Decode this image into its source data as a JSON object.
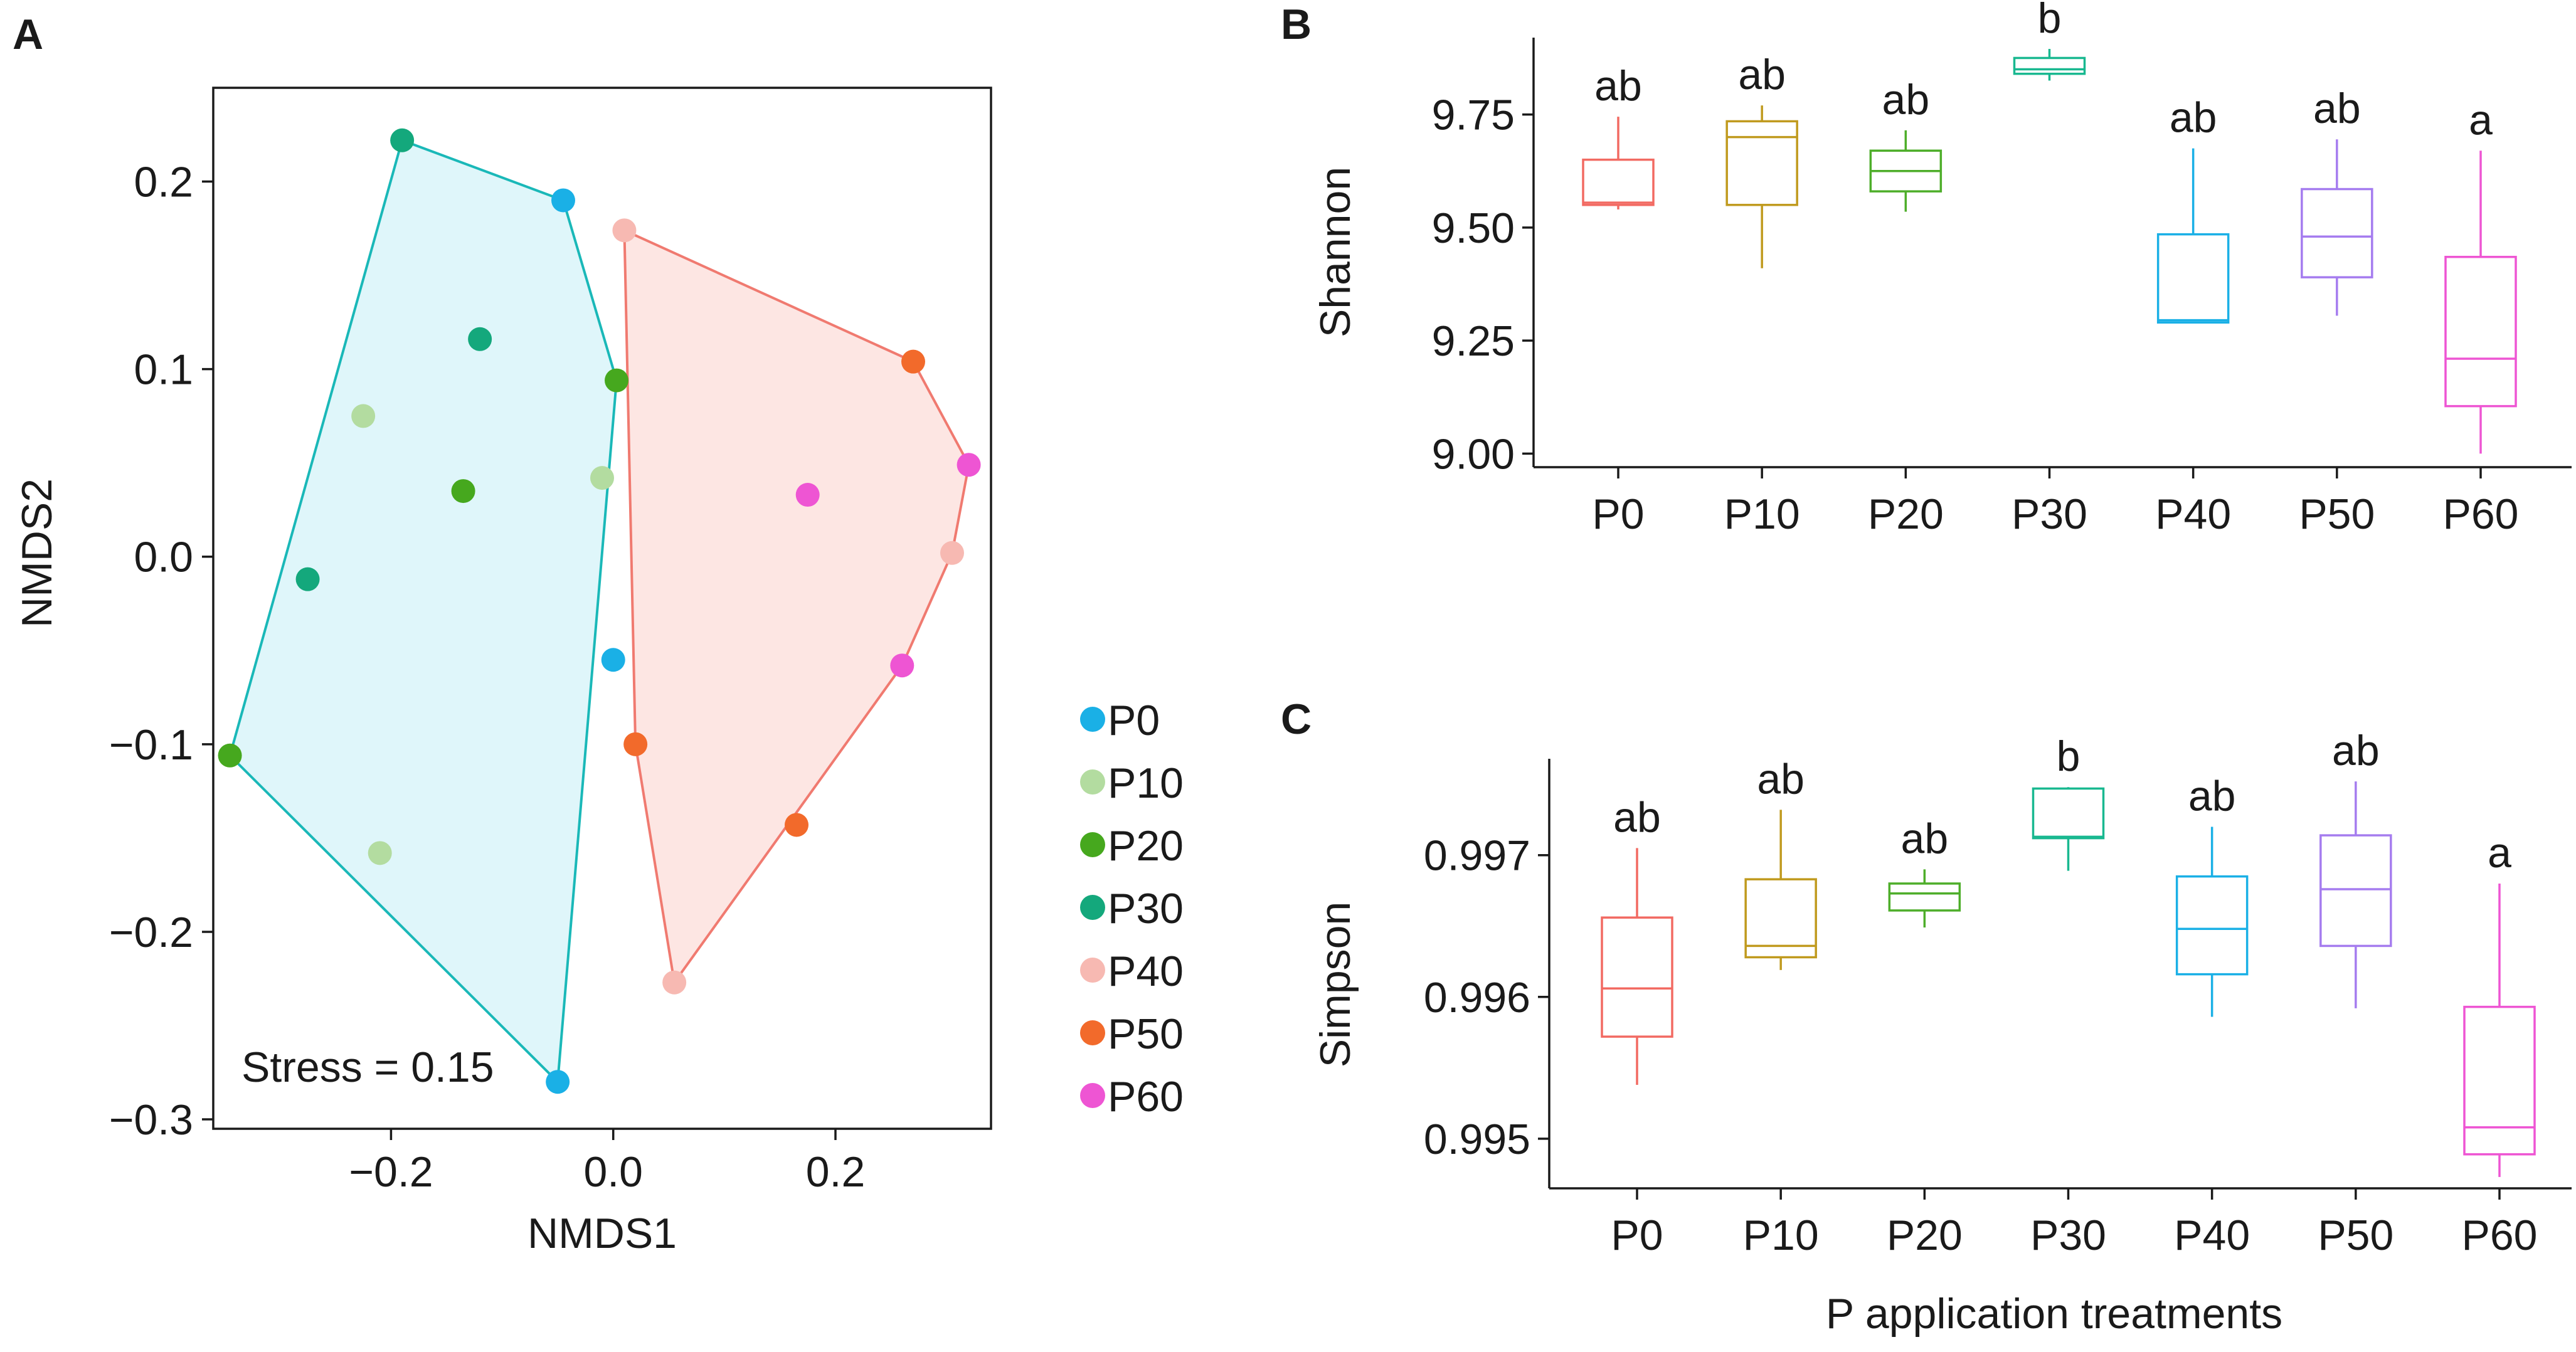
{
  "chart_data": [
    {
      "type": "scatter",
      "panel_label": "A",
      "title": "",
      "xlabel": "NMDS1",
      "ylabel": "NMDS2",
      "xlim": [
        -0.36,
        0.34
      ],
      "ylim": [
        -0.305,
        0.25
      ],
      "xticks": [
        -0.2,
        0.0,
        0.2
      ],
      "xtick_labels": [
        "−0.2",
        "0.0",
        "0.2"
      ],
      "yticks": [
        0.2,
        0.1,
        0.0,
        -0.1,
        -0.2,
        -0.3
      ],
      "ytick_labels": [
        "0.2",
        "0.1",
        "0.0",
        "−0.1",
        "−0.2",
        "−0.3"
      ],
      "annotation": "Stress = 0.15",
      "legend": [
        {
          "label": "P0",
          "color": "#1ab0e6"
        },
        {
          "label": "P10",
          "color": "#b3dca0"
        },
        {
          "label": "P20",
          "color": "#46a81e"
        },
        {
          "label": "P30",
          "color": "#14a87c"
        },
        {
          "label": "P40",
          "color": "#f7b9b2"
        },
        {
          "label": "P50",
          "color": "#f26a2b"
        },
        {
          "label": "P60",
          "color": "#ee55d3"
        }
      ],
      "series": [
        {
          "name": "P0",
          "points": [
            [
              -0.045,
              0.19
            ],
            [
              0.0,
              -0.055
            ],
            [
              -0.05,
              -0.28
            ]
          ]
        },
        {
          "name": "P10",
          "points": [
            [
              -0.225,
              0.075
            ],
            [
              -0.01,
              0.042
            ],
            [
              -0.21,
              -0.158
            ]
          ]
        },
        {
          "name": "P20",
          "points": [
            [
              0.003,
              0.094
            ],
            [
              -0.135,
              0.035
            ],
            [
              -0.345,
              -0.106
            ]
          ]
        },
        {
          "name": "P30",
          "points": [
            [
              -0.19,
              0.222
            ],
            [
              -0.12,
              0.116
            ],
            [
              -0.275,
              -0.012
            ]
          ]
        },
        {
          "name": "P40",
          "points": [
            [
              0.01,
              0.174
            ],
            [
              0.305,
              0.002
            ],
            [
              0.055,
              -0.227
            ]
          ]
        },
        {
          "name": "P50",
          "points": [
            [
              0.27,
              0.104
            ],
            [
              0.02,
              -0.1
            ],
            [
              0.165,
              -0.143
            ]
          ]
        },
        {
          "name": "P60",
          "points": [
            [
              0.175,
              0.033
            ],
            [
              0.32,
              0.049
            ],
            [
              0.26,
              -0.058
            ]
          ]
        }
      ],
      "hulls": [
        {
          "name": "left-group",
          "color": "#1ab8b8",
          "fill": "#dff6fa",
          "points": [
            [
              -0.19,
              0.222
            ],
            [
              -0.045,
              0.19
            ],
            [
              0.003,
              0.094
            ],
            [
              -0.05,
              -0.28
            ],
            [
              -0.345,
              -0.106
            ]
          ]
        },
        {
          "name": "right-group",
          "color": "#f07a70",
          "fill": "#fde6e3",
          "points": [
            [
              0.01,
              0.174
            ],
            [
              0.27,
              0.104
            ],
            [
              0.32,
              0.049
            ],
            [
              0.305,
              0.002
            ],
            [
              0.26,
              -0.058
            ],
            [
              0.055,
              -0.227
            ],
            [
              0.02,
              -0.1
            ]
          ]
        }
      ]
    },
    {
      "type": "box",
      "panel_label": "B",
      "title": "",
      "xlabel": "",
      "ylabel": "Shannon",
      "ylim": [
        8.97,
        9.92
      ],
      "yticks": [
        9.0,
        9.25,
        9.5,
        9.75
      ],
      "ytick_labels": [
        "9.00",
        "9.25",
        "9.50",
        "9.75"
      ],
      "categories": [
        "P0",
        "P10",
        "P20",
        "P30",
        "P40",
        "P50",
        "P60"
      ],
      "colors": [
        "#f26a62",
        "#c09a1e",
        "#4eae2a",
        "#19b890",
        "#1ab0e6",
        "#a57cef",
        "#ee55d3"
      ],
      "significance": [
        "ab",
        "ab",
        "ab",
        "b",
        "ab",
        "ab",
        "a"
      ],
      "boxes": [
        {
          "min": 9.54,
          "q1": 9.55,
          "median": 9.555,
          "q3": 9.65,
          "max": 9.745
        },
        {
          "min": 9.41,
          "q1": 9.55,
          "median": 9.7,
          "q3": 9.735,
          "max": 9.77
        },
        {
          "min": 9.535,
          "q1": 9.58,
          "median": 9.625,
          "q3": 9.67,
          "max": 9.715
        },
        {
          "min": 9.825,
          "q1": 9.84,
          "median": 9.85,
          "q3": 9.875,
          "max": 9.895
        },
        {
          "min": 9.29,
          "q1": 9.29,
          "median": 9.295,
          "q3": 9.485,
          "max": 9.675
        },
        {
          "min": 9.305,
          "q1": 9.39,
          "median": 9.48,
          "q3": 9.585,
          "max": 9.695
        },
        {
          "min": 9.0,
          "q1": 9.105,
          "median": 9.21,
          "q3": 9.435,
          "max": 9.67
        }
      ]
    },
    {
      "type": "box",
      "panel_label": "C",
      "title": "",
      "xlabel": "P application treatments",
      "ylabel": "Simpson",
      "ylim": [
        0.99465,
        0.99768
      ],
      "yticks": [
        0.995,
        0.996,
        0.997
      ],
      "ytick_labels": [
        "0.995",
        "0.996",
        "0.997"
      ],
      "categories": [
        "P0",
        "P10",
        "P20",
        "P30",
        "P40",
        "P50",
        "P60"
      ],
      "colors": [
        "#f26a62",
        "#c09a1e",
        "#4eae2a",
        "#19b890",
        "#1ab0e6",
        "#a57cef",
        "#ee55d3"
      ],
      "significance": [
        "ab",
        "ab",
        "ab",
        "b",
        "ab",
        "ab",
        "a"
      ],
      "boxes": [
        {
          "min": 0.99538,
          "q1": 0.99572,
          "median": 0.99606,
          "q3": 0.99656,
          "max": 0.99705
        },
        {
          "min": 0.99619,
          "q1": 0.99628,
          "median": 0.99636,
          "q3": 0.99683,
          "max": 0.99732
        },
        {
          "min": 0.99649,
          "q1": 0.99661,
          "median": 0.99673,
          "q3": 0.9968,
          "max": 0.9969
        },
        {
          "min": 0.99689,
          "q1": 0.99712,
          "median": 0.99713,
          "q3": 0.99747,
          "max": 0.99748
        },
        {
          "min": 0.99586,
          "q1": 0.99616,
          "median": 0.99648,
          "q3": 0.99685,
          "max": 0.9972
        },
        {
          "min": 0.99592,
          "q1": 0.99636,
          "median": 0.99676,
          "q3": 0.99714,
          "max": 0.99752
        },
        {
          "min": 0.99473,
          "q1": 0.99489,
          "median": 0.99508,
          "q3": 0.99593,
          "max": 0.9968
        }
      ]
    }
  ]
}
